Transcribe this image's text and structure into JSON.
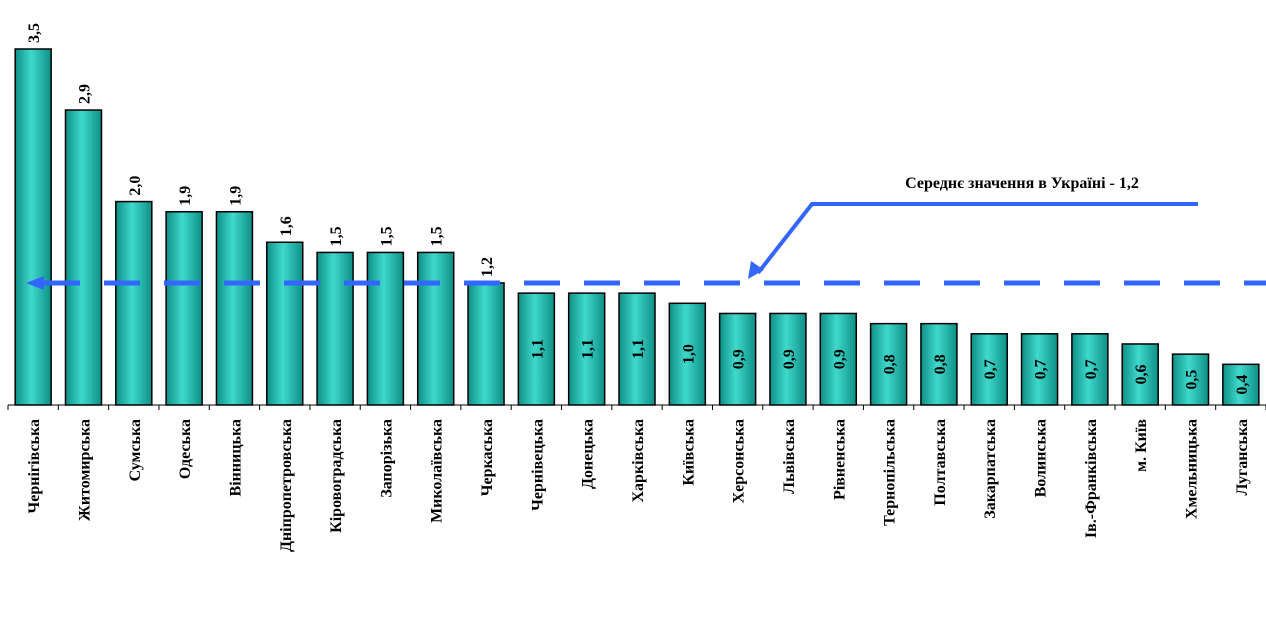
{
  "chart_data": {
    "type": "bar",
    "categories": [
      "Чернігівська",
      "Житомирська",
      "Сумська",
      "Одеська",
      "Вінницька",
      "Дніпропетровська",
      "Кіровоградська",
      "Запорізька",
      "Миколаївська",
      "Черкаська",
      "Чернівецька",
      "Донецька",
      "Харківська",
      "Київська",
      "Херсонська",
      "Львівська",
      "Рівненська",
      "Тернопільська",
      "Полтавська",
      "Закарпатська",
      "Волинська",
      "Ів.-Франківська",
      "м. Київ",
      "Хмельницька",
      "Луганська"
    ],
    "values": [
      3.5,
      2.9,
      2.0,
      1.9,
      1.9,
      1.6,
      1.5,
      1.5,
      1.5,
      1.2,
      1.1,
      1.1,
      1.1,
      1.0,
      0.9,
      0.9,
      0.9,
      0.8,
      0.8,
      0.7,
      0.7,
      0.7,
      0.6,
      0.5,
      0.4
    ],
    "value_labels": [
      "3,5",
      "2,9",
      "2,0",
      "1,9",
      "1,9",
      "1,6",
      "1,5",
      "1,5",
      "1,5",
      "1,2",
      "1,1",
      "1,1",
      "1,1",
      "1,0",
      "0,9",
      "0,9",
      "0,9",
      "0,8",
      "0,8",
      "0,7",
      "0,7",
      "0,7",
      "0,6",
      "0,5",
      "0,4"
    ],
    "average": {
      "value": 1.2,
      "label": "Середнє значення в Україні - 1,2"
    },
    "ylim": [
      0,
      3.5
    ],
    "grid": false,
    "legend": "none",
    "colors": {
      "bar": "#33CCC0",
      "bar_edge": "#000000",
      "average_line": "#3366FF"
    }
  }
}
